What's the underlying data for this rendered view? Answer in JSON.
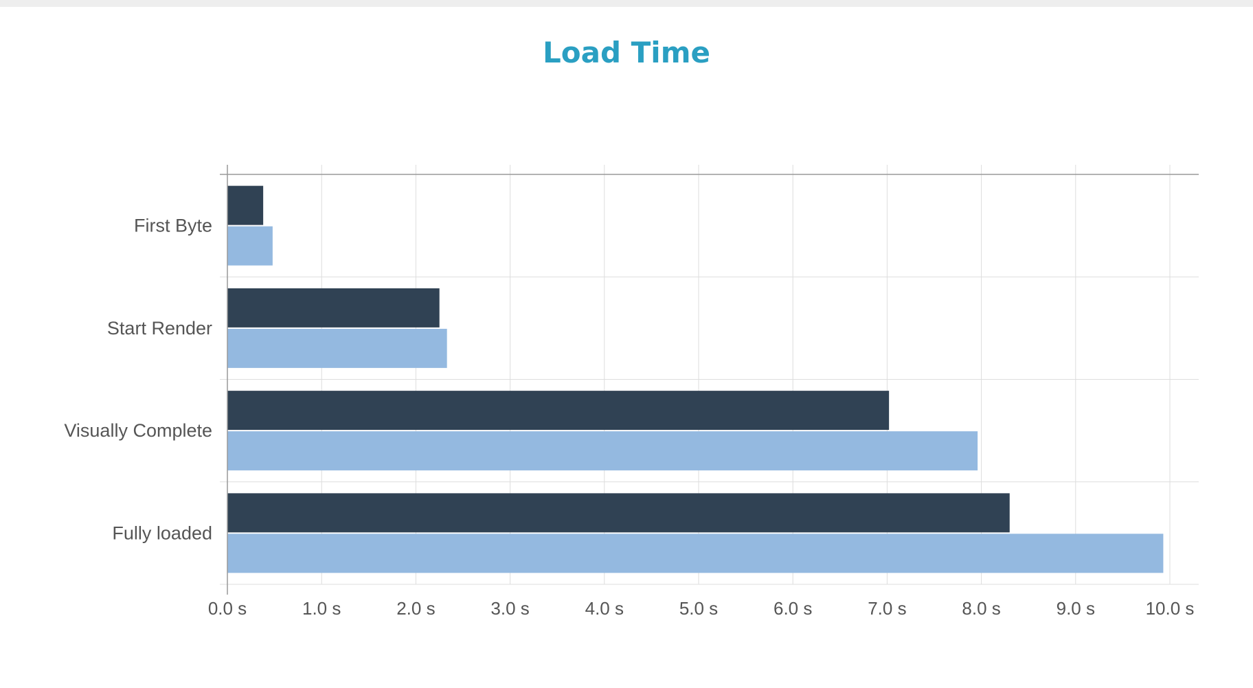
{
  "chart_data": {
    "type": "bar",
    "orientation": "horizontal",
    "title": "Load Time",
    "categories": [
      "First Byte",
      "Start Render",
      "Visually Complete",
      "Fully loaded"
    ],
    "series": [
      {
        "values": [
          0.38,
          2.25,
          7.02,
          8.3
        ],
        "color": "#304254"
      },
      {
        "values": [
          0.48,
          2.33,
          7.96,
          9.93
        ],
        "color": "#94b9e0"
      }
    ],
    "xticks": [
      "0.0 s",
      "1.0 s",
      "2.0 s",
      "3.0 s",
      "4.0 s",
      "5.0 s",
      "6.0 s",
      "7.0 s",
      "8.0 s",
      "9.0 s",
      "10.0 s"
    ],
    "xlim": [
      0,
      10
    ],
    "xunit": "s",
    "grid": true,
    "legend": "none"
  },
  "colors": {
    "title": "#2a9fc2",
    "grid": "#dddddd",
    "axis": "#999999",
    "label": "#555555"
  }
}
